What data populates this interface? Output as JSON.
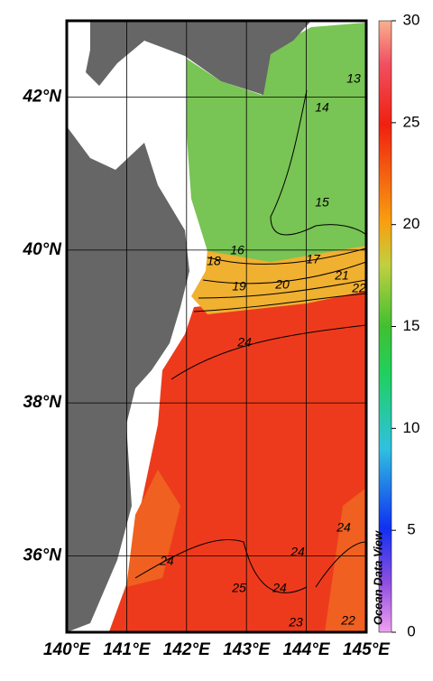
{
  "map": {
    "xlim": [
      140,
      145
    ],
    "ylim": [
      35,
      43
    ],
    "xticks": [
      {
        "value": 140,
        "label": "140°E"
      },
      {
        "value": 141,
        "label": "141°E"
      },
      {
        "value": 142,
        "label": "142°E"
      },
      {
        "value": 143,
        "label": "143°E"
      },
      {
        "value": 144,
        "label": "144°E"
      },
      {
        "value": 145,
        "label": "145°E"
      }
    ],
    "yticks": [
      {
        "value": 36,
        "label": "36°N"
      },
      {
        "value": 38,
        "label": "38°N"
      },
      {
        "value": 40,
        "label": "40°N"
      },
      {
        "value": 42,
        "label": "42°N"
      }
    ],
    "contour_labels": [
      "13",
      "14",
      "15",
      "16",
      "18",
      "17",
      "19",
      "20",
      "21",
      "22",
      "24",
      "24",
      "24",
      "24",
      "25",
      "24",
      "23",
      "22"
    ]
  },
  "colorbar": {
    "lim": [
      0,
      30
    ],
    "ticks": [
      0,
      5,
      10,
      15,
      20,
      25,
      30
    ]
  },
  "watermark": "Ocean Data View"
}
